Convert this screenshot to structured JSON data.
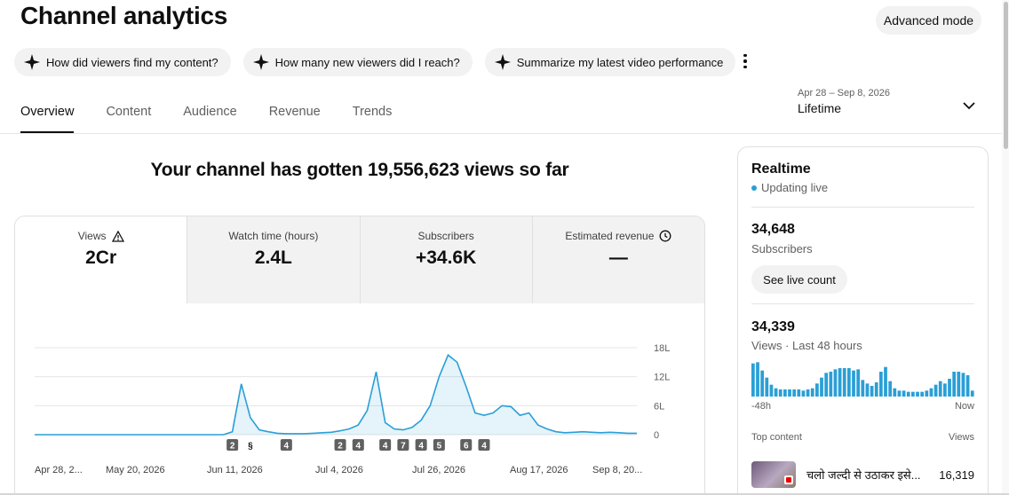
{
  "header": {
    "title": "Channel analytics",
    "advanced_mode": "Advanced mode"
  },
  "chips": [
    "How did viewers find my content?",
    "How many new viewers did I reach?",
    "Summarize my latest video performance"
  ],
  "tabs": [
    "Overview",
    "Content",
    "Audience",
    "Revenue",
    "Trends"
  ],
  "active_tab": "Overview",
  "date_range": {
    "range": "Apr 28 – Sep 8, 2026",
    "label": "Lifetime"
  },
  "headline": "Your channel has gotten 19,556,623 views so far",
  "metrics": [
    {
      "label": "Views",
      "value": "2Cr",
      "icon": "warning-icon"
    },
    {
      "label": "Watch time (hours)",
      "value": "2.4L"
    },
    {
      "label": "Subscribers",
      "value": "+34.6K"
    },
    {
      "label": "Estimated revenue",
      "value": "—",
      "icon": "clock-icon"
    }
  ],
  "accent_color": "#2a9fd6",
  "chart_data": {
    "type": "area",
    "ytick_labels": [
      "18L",
      "12L",
      "6L",
      "0"
    ],
    "yticks": [
      1800000,
      1200000,
      600000,
      0
    ],
    "ylim": [
      0,
      1800000
    ],
    "xtick_labels": [
      "Apr 28, 2...",
      "May 20, 2026",
      "Jun 11, 2026",
      "Jul 4, 2026",
      "Jul 26, 2026",
      "Aug 17, 2026",
      "Sep 8, 20..."
    ],
    "x": [
      "Apr 28",
      "Apr 30",
      "May 2",
      "May 4",
      "May 6",
      "May 8",
      "May 10",
      "May 12",
      "May 14",
      "May 16",
      "May 18",
      "May 20",
      "May 22",
      "May 24",
      "May 26",
      "May 28",
      "May 30",
      "Jun 1",
      "Jun 3",
      "Jun 5",
      "Jun 7",
      "Jun 9",
      "Jun 11",
      "Jun 13",
      "Jun 15",
      "Jun 17",
      "Jun 19",
      "Jun 21",
      "Jun 23",
      "Jun 25",
      "Jun 27",
      "Jun 29",
      "Jul 1",
      "Jul 3",
      "Jul 5",
      "Jul 7",
      "Jul 9",
      "Jul 11",
      "Jul 13",
      "Jul 15",
      "Jul 17",
      "Jul 19",
      "Jul 21",
      "Jul 23",
      "Jul 25",
      "Jul 27",
      "Jul 29",
      "Jul 31",
      "Aug 2",
      "Aug 4",
      "Aug 6",
      "Aug 8",
      "Aug 10",
      "Aug 12",
      "Aug 14",
      "Aug 16",
      "Aug 18",
      "Aug 20",
      "Aug 22",
      "Aug 24",
      "Aug 26",
      "Aug 28",
      "Aug 30",
      "Sep 1",
      "Sep 3",
      "Sep 5",
      "Sep 7",
      "Sep 8"
    ],
    "values": [
      0,
      0,
      0,
      0,
      0,
      0,
      0,
      0,
      0,
      0,
      0,
      0,
      0,
      0,
      0,
      0,
      0,
      0,
      0,
      0,
      0,
      0,
      60000,
      1050000,
      350000,
      100000,
      60000,
      30000,
      20000,
      20000,
      20000,
      30000,
      40000,
      50000,
      80000,
      120000,
      200000,
      500000,
      1300000,
      250000,
      120000,
      100000,
      150000,
      300000,
      600000,
      1200000,
      1650000,
      1500000,
      1000000,
      450000,
      400000,
      450000,
      600000,
      580000,
      400000,
      450000,
      200000,
      120000,
      60000,
      40000,
      50000,
      60000,
      50000,
      40000,
      50000,
      40000,
      30000,
      30000
    ],
    "annotation_markers": [
      "2",
      "icon",
      "4",
      "2",
      "4",
      "4",
      "7",
      "4",
      "5",
      "6",
      "4"
    ]
  },
  "realtime": {
    "title": "Realtime",
    "status": "Updating live",
    "subscribers_value": "34,648",
    "subscribers_label": "Subscribers",
    "see_live_count": "See live count",
    "views_value": "34,339",
    "views_label": "Views · Last 48 hours",
    "axis_start": "-48h",
    "axis_end": "Now",
    "bars": [
      28,
      29,
      22,
      16,
      10,
      7,
      6,
      6,
      6,
      6,
      6,
      5,
      6,
      7,
      11,
      16,
      20,
      21,
      23,
      24,
      24,
      24,
      22,
      23,
      14,
      11,
      9,
      12,
      21,
      25,
      13,
      7,
      5,
      5,
      4,
      4,
      4,
      4,
      5,
      7,
      10,
      13,
      11,
      15,
      21,
      21,
      20,
      18,
      5
    ],
    "top_content_label": "Top content",
    "top_content_views_label": "Views",
    "top_video_title": "चलो जल्दी से उठाकर इसे...",
    "top_video_views": "16,319"
  }
}
